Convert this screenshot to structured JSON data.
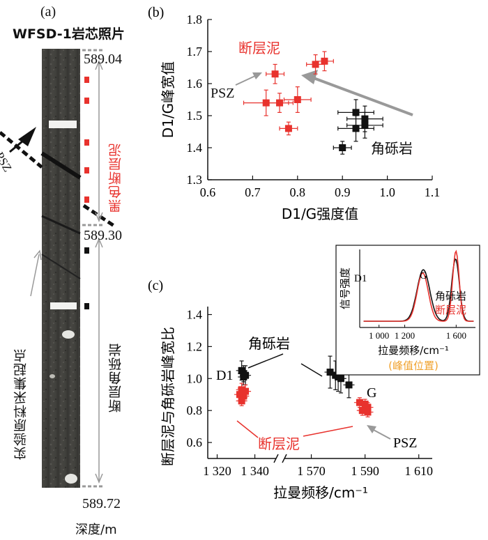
{
  "panel_a": {
    "label": "(a)",
    "title": "WFSD-1岩芯照片",
    "depth_top": "589.04",
    "depth_mid": "589.30",
    "depth_bottom": "589.72",
    "depth_axis_label": "深度/m",
    "gouge_label": "黑色断层泥",
    "breccia_label": "断层角砾岩",
    "sample_start_label": "实验原料采集起点",
    "psz_label": "PSZ"
  },
  "chart_data": [
    {
      "type": "scatter",
      "panel": "(b)",
      "xlabel": "D1/G强度值",
      "ylabel": "D1/G峰宽值",
      "xlim": [
        0.6,
        1.1
      ],
      "ylim": [
        1.3,
        1.8
      ],
      "xticks": [
        "0.6",
        "0.7",
        "0.8",
        "0.9",
        "1.0",
        "1.1"
      ],
      "yticks": [
        "1.3",
        "1.4",
        "1.5",
        "1.6",
        "1.7",
        "1.8"
      ],
      "series": [
        {
          "name": "断层泥",
          "color": "#e8322d",
          "points": [
            {
              "x": 0.75,
              "y": 1.63,
              "xerr": 0.02,
              "yerr": 0.03
            },
            {
              "x": 0.84,
              "y": 1.66,
              "xerr": 0.02,
              "yerr": 0.03
            },
            {
              "x": 0.86,
              "y": 1.67,
              "xerr": 0.02,
              "yerr": 0.03
            },
            {
              "x": 0.73,
              "y": 1.54,
              "xerr": 0.05,
              "yerr": 0.04
            },
            {
              "x": 0.76,
              "y": 1.54,
              "xerr": 0.03,
              "yerr": 0.03
            },
            {
              "x": 0.8,
              "y": 1.55,
              "xerr": 0.03,
              "yerr": 0.04
            },
            {
              "x": 0.78,
              "y": 1.46,
              "xerr": 0.02,
              "yerr": 0.02
            }
          ]
        },
        {
          "name": "角砾岩",
          "color": "#111111",
          "points": [
            {
              "x": 0.93,
              "y": 1.51,
              "xerr": 0.04,
              "yerr": 0.04
            },
            {
              "x": 0.95,
              "y": 1.49,
              "xerr": 0.04,
              "yerr": 0.04
            },
            {
              "x": 0.95,
              "y": 1.47,
              "xerr": 0.04,
              "yerr": 0.04
            },
            {
              "x": 0.93,
              "y": 1.46,
              "xerr": 0.04,
              "yerr": 0.04
            },
            {
              "x": 0.9,
              "y": 1.4,
              "xerr": 0.02,
              "yerr": 0.02
            }
          ]
        }
      ],
      "annotations": {
        "gouge": "断层泥",
        "breccia": "角砾岩",
        "psz": "PSZ"
      }
    },
    {
      "type": "scatter",
      "panel": "(c)",
      "xlabel": "拉曼频移/cm⁻¹",
      "ylabel": "断层泥与角砾岩峰宽比",
      "ylim": [
        0.5,
        1.45
      ],
      "yticks": [
        "0.6",
        "0.8",
        "1.0",
        "1.2",
        "1.4"
      ],
      "xticks": [
        "1 320",
        "1 340",
        "1 570",
        "1 590",
        "1 610"
      ],
      "broken_axis": true,
      "segments": [
        [
          1315,
          1352
        ],
        [
          1560,
          1615
        ]
      ],
      "series": [
        {
          "name": "D1",
          "color": "#111111",
          "points": [
            {
              "x": 1333,
              "y": 1.05,
              "yerr": 0.06
            },
            {
              "x": 1334,
              "y": 1.03,
              "yerr": 0.05
            },
            {
              "x": 1335,
              "y": 1.02,
              "yerr": 0.06
            },
            {
              "x": 1334,
              "y": 1.01,
              "yerr": 0.05
            }
          ]
        },
        {
          "name": "G_breccia",
          "color": "#111111",
          "points": [
            {
              "x": 1577,
              "y": 1.04,
              "yerr": 0.1
            },
            {
              "x": 1579,
              "y": 1.02,
              "yerr": 0.09
            },
            {
              "x": 1580,
              "y": 1.01,
              "yerr": 0.09
            },
            {
              "x": 1581,
              "y": 1.0,
              "yerr": 0.09
            },
            {
              "x": 1584,
              "y": 0.96,
              "yerr": 0.08
            }
          ]
        },
        {
          "name": "D1_gouge",
          "color": "#e8322d",
          "points": [
            {
              "x": 1332,
              "y": 0.9,
              "yerr": 0.04
            },
            {
              "x": 1333,
              "y": 0.93,
              "yerr": 0.04
            },
            {
              "x": 1334,
              "y": 0.89,
              "yerr": 0.03
            },
            {
              "x": 1335,
              "y": 0.92,
              "yerr": 0.04
            },
            {
              "x": 1333,
              "y": 0.86,
              "yerr": 0.03
            }
          ]
        },
        {
          "name": "G_gouge",
          "color": "#e8322d",
          "points": [
            {
              "x": 1588,
              "y": 0.85,
              "yerr": 0.03
            },
            {
              "x": 1590,
              "y": 0.84,
              "yerr": 0.03
            },
            {
              "x": 1591,
              "y": 0.82,
              "yerr": 0.03
            },
            {
              "x": 1589,
              "y": 0.8,
              "yerr": 0.03
            },
            {
              "x": 1591,
              "y": 0.79,
              "yerr": 0.03
            }
          ]
        }
      ],
      "annotations": {
        "d1": "D1",
        "g": "G",
        "breccia": "角砾岩",
        "gouge": "断层泥",
        "psz": "PSZ"
      }
    },
    {
      "type": "line",
      "panel": "inset",
      "xlabel": "拉曼频移/cm⁻¹",
      "ylabel": "信号强度",
      "xticks": [
        "1 000",
        "1 200",
        "1 600"
      ],
      "note": "(峰值位置)",
      "peaks": {
        "d1": "D1",
        "g": "G"
      },
      "legend": [
        {
          "name": "角砾岩",
          "color": "#111111"
        },
        {
          "name": "断层泥",
          "color": "#e8322d"
        }
      ]
    }
  ]
}
